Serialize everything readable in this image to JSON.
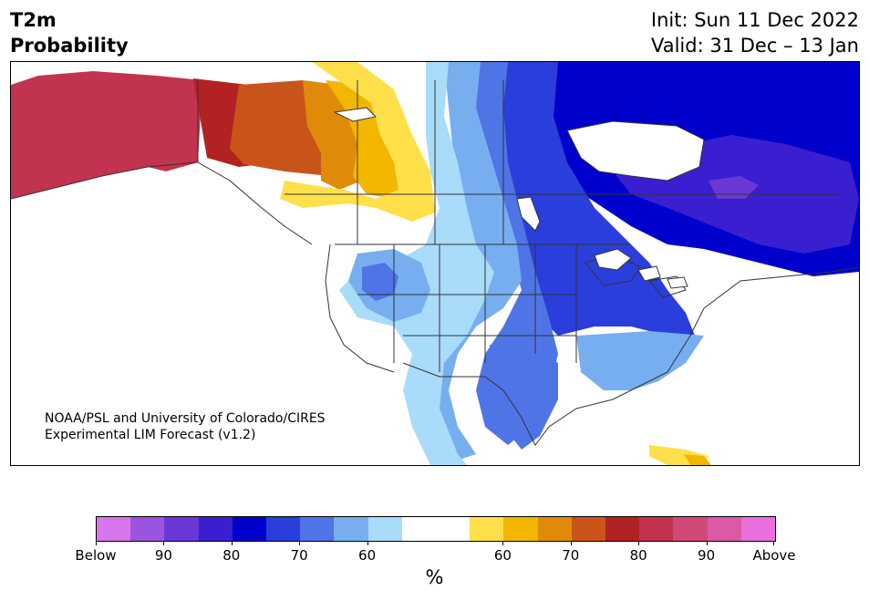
{
  "title": {
    "left_line1": "T2m",
    "left_line2": "Probability",
    "right_line1": "Init: Sun 11 Dec 2022",
    "right_line2": "Valid: 31 Dec – 13 Jan"
  },
  "credit": {
    "line1": "NOAA/PSL and University of Colorado/CIRES",
    "line2": "Experimental LIM Forecast (v1.2)"
  },
  "colorbar": {
    "unit": "%",
    "colors": [
      "#d975ec",
      "#9a54e0",
      "#6a38d6",
      "#3a1fd0",
      "#0000cc",
      "#2a3edc",
      "#4f74e6",
      "#77aef0",
      "#a9dbfb",
      "#ffffff",
      "#ffffff",
      "#ffe04a",
      "#f2b600",
      "#e08a0a",
      "#c9541a",
      "#b22222",
      "#c1334e",
      "#d04a78",
      "#dc5aa5",
      "#e96fdc"
    ],
    "tick_labels": [
      "Below",
      "90",
      "80",
      "70",
      "60",
      "60",
      "70",
      "80",
      "90",
      "Above"
    ]
  },
  "map": {
    "colors": {
      "above_80": "#c1334e",
      "above_70": "#b22222",
      "above_60": "#c9541a",
      "above_55": "#e08a0a",
      "above_50": "#f2b600",
      "above_40": "#ffe04a",
      "below_40": "#a9dbfb",
      "below_50": "#77aef0",
      "below_60": "#4f74e6",
      "below_70": "#2a3edc",
      "below_80": "#0000cc",
      "below_90": "#3a1fd0",
      "below_95": "#6a38d6",
      "neutral": "#ffffff",
      "borders": "#333333"
    }
  }
}
